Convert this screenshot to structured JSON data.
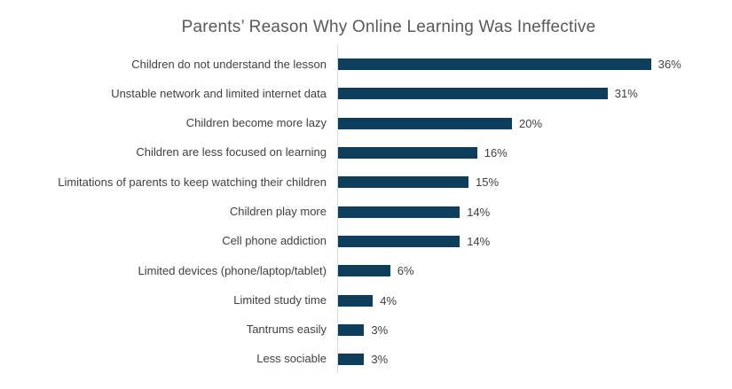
{
  "title": "Parents’ Reason Why Online Learning Was Ineffective",
  "colors": {
    "bar": "#0D3E5C",
    "axis_line": "#D9D9D9",
    "title_text": "#595959",
    "label_text": "#404040",
    "background": "#FFFFFF"
  },
  "chart_data": {
    "type": "bar",
    "orientation": "horizontal",
    "title": "Parents’ Reason Why Online Learning Was Ineffective",
    "categories": [
      "Children do not understand the lesson",
      "Unstable network and limited internet data",
      "Children become more lazy",
      "Children are less focused on learning",
      "Limitations of parents to keep watching their children",
      "Children play more",
      "Cell phone addiction",
      "Limited devices (phone/laptop/tablet)",
      "Limited study time",
      "Tantrums easily",
      "Less sociable"
    ],
    "values": [
      36,
      31,
      20,
      16,
      15,
      14,
      14,
      6,
      4,
      3,
      3
    ],
    "data_labels": [
      "36%",
      "31%",
      "20%",
      "16%",
      "15%",
      "14%",
      "14%",
      "6%",
      "4%",
      "3%",
      "3%"
    ],
    "xlabel": "",
    "ylabel": "",
    "xlim": [
      0,
      40
    ],
    "grid": false,
    "legend": false,
    "data_labels_shown": true
  }
}
